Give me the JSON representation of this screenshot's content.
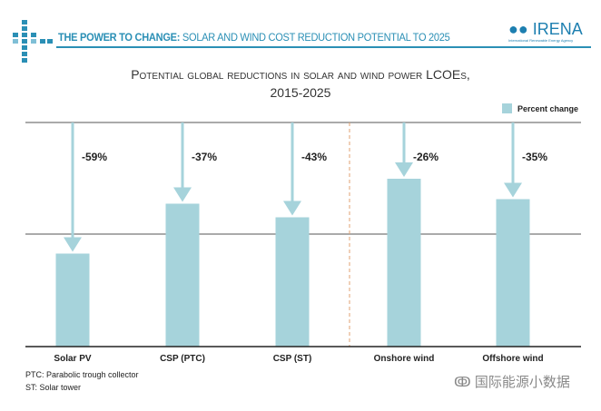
{
  "header": {
    "title_bold": "THE POWER TO CHANGE:",
    "title_rest": " SOLAR AND WIND COST REDUCTION POTENTIAL TO 2025",
    "logo_text": "IRENA",
    "logo_subtext": "International Renewable Energy Agency"
  },
  "chart_data": {
    "type": "bar",
    "title_line1": "Potential global reductions in solar and wind power LCOEs,",
    "title_line2": "2015-2025",
    "categories": [
      "Solar PV",
      "CSP (PTC)",
      "CSP (ST)",
      "Onshore wind",
      "Offshore wind"
    ],
    "series": [
      {
        "name": "Percent change",
        "values": [
          -59,
          -37,
          -43,
          -26,
          -35
        ]
      }
    ],
    "data_labels": [
      "-59%",
      "-37%",
      "-43%",
      "-26%",
      "-35%"
    ],
    "legend": "Percent change",
    "legend_position": "top-right",
    "grid": true,
    "colors": {
      "bar": "#a6d3db",
      "arrow": "#a6d3db",
      "divider": "#e0a070",
      "axis": "#222222",
      "grid": "#555555"
    }
  },
  "footnotes": [
    "PTC: Parabolic trough collector",
    "ST: Solar tower"
  ],
  "watermark": "国际能源小数据"
}
